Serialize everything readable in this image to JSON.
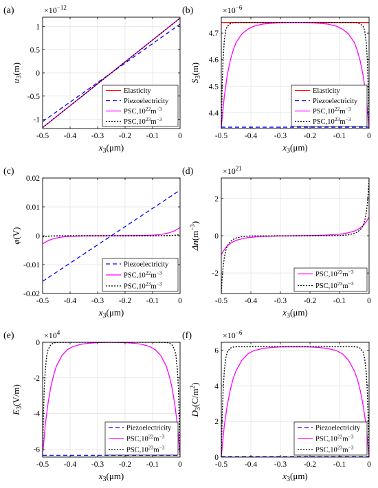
{
  "colors": {
    "elasticity": "#ff0000",
    "piezoelectricity": "#0000ff",
    "psc22": "#ff00ff",
    "psc23": "#000000",
    "grid": "#e3e3e3"
  },
  "chart_data": [
    {
      "panel": "(a)",
      "type": "line",
      "ylabel_main": "u",
      "ylabel_sub": "3",
      "ylabel_unit": "(m)",
      "xlabel_main": "x",
      "xlabel_sub": "3",
      "xlabel_unit": "(μm)",
      "exponent": "×10",
      "exponent_power": "−12",
      "xlim": [
        -0.5,
        0
      ],
      "ylim": [
        -1.2,
        1.2
      ],
      "xticks": [
        "-0.5",
        "-0.4",
        "-0.3",
        "-0.2",
        "-0.1",
        "0"
      ],
      "yticks": [
        "-1",
        "-0.5",
        "0",
        "0.5",
        "1"
      ],
      "ytick_values": [
        -1,
        -0.5,
        0,
        0.5,
        1
      ],
      "legend_position": "bottom-right",
      "series": [
        {
          "name": "Elasticity",
          "style": "solid",
          "color_key": "elasticity",
          "x": [
            -0.5,
            0
          ],
          "y": [
            -1.18,
            1.18
          ]
        },
        {
          "name": "Piezoelectricity",
          "style": "dashed",
          "color_key": "piezoelectricity",
          "x": [
            -0.5,
            0
          ],
          "y": [
            -1.05,
            1.05
          ]
        },
        {
          "name": "PSC,10",
          "power": "22",
          "unit": "m",
          "unit_power": "−3",
          "style": "solid",
          "color_key": "psc22",
          "x": [
            -0.5,
            0
          ],
          "y": [
            -1.18,
            1.18
          ]
        },
        {
          "name": "PSC,10",
          "power": "23",
          "unit": "m",
          "unit_power": "−3",
          "style": "dotted",
          "color_key": "psc23",
          "x": [
            -0.5,
            0
          ],
          "y": [
            -1.18,
            1.18
          ]
        }
      ]
    },
    {
      "panel": "(b)",
      "type": "line",
      "ylabel_main": "S",
      "ylabel_sub": "3",
      "ylabel_unit": "(m)",
      "xlabel_main": "x",
      "xlabel_sub": "3",
      "xlabel_unit": "(μm)",
      "exponent": "×10",
      "exponent_power": "−6",
      "xlim": [
        -0.5,
        0
      ],
      "ylim": [
        4.34,
        4.76
      ],
      "xticks": [
        "-0.5",
        "-0.4",
        "-0.3",
        "-0.2",
        "-0.1",
        "0"
      ],
      "yticks": [
        "4.4",
        "4.5",
        "4.6",
        "4.7"
      ],
      "ytick_values": [
        4.4,
        4.5,
        4.6,
        4.7
      ],
      "legend_position": "bottom-right",
      "series": [
        {
          "name": "Elasticity",
          "style": "solid",
          "color_key": "elasticity",
          "x": [
            -0.5,
            0
          ],
          "y": [
            4.74,
            4.74
          ]
        },
        {
          "name": "Piezoelectricity",
          "style": "dashed",
          "color_key": "piezoelectricity",
          "x": [
            -0.5,
            0
          ],
          "y": [
            4.345,
            4.345
          ]
        },
        {
          "name": "PSC,10",
          "power": "22",
          "unit": "m",
          "unit_power": "−3",
          "style": "solid",
          "color_key": "psc22",
          "x": [
            -0.5,
            -0.49,
            -0.48,
            -0.47,
            -0.46,
            -0.45,
            -0.43,
            -0.41,
            -0.39,
            -0.36,
            -0.33,
            -0.3,
            -0.25,
            -0.2,
            -0.17,
            -0.14,
            -0.11,
            -0.09,
            -0.07,
            -0.05,
            -0.04,
            -0.03,
            -0.02,
            -0.01,
            0
          ],
          "y": [
            4.345,
            4.46,
            4.54,
            4.595,
            4.635,
            4.665,
            4.697,
            4.715,
            4.726,
            4.734,
            4.737,
            4.739,
            4.74,
            4.739,
            4.737,
            4.734,
            4.726,
            4.715,
            4.697,
            4.665,
            4.635,
            4.595,
            4.54,
            4.46,
            4.345
          ]
        },
        {
          "name": "PSC,10",
          "power": "23",
          "unit": "m",
          "unit_power": "−3",
          "style": "dotted",
          "color_key": "psc23",
          "x": [
            -0.5,
            -0.497,
            -0.494,
            -0.49,
            -0.485,
            -0.48,
            -0.47,
            -0.46,
            -0.45,
            -0.4,
            -0.25,
            -0.1,
            -0.05,
            -0.04,
            -0.03,
            -0.02,
            -0.015,
            -0.01,
            -0.006,
            -0.003,
            0
          ],
          "y": [
            4.345,
            4.5,
            4.6,
            4.67,
            4.71,
            4.725,
            4.735,
            4.739,
            4.74,
            4.74,
            4.74,
            4.74,
            4.74,
            4.739,
            4.735,
            4.725,
            4.71,
            4.67,
            4.6,
            4.5,
            4.345
          ]
        }
      ]
    },
    {
      "panel": "(c)",
      "type": "line",
      "ylabel_main": "φ",
      "ylabel_sub": "",
      "ylabel_unit": "(V)",
      "xlabel_main": "x",
      "xlabel_sub": "3",
      "xlabel_unit": "(μm)",
      "exponent": "",
      "exponent_power": "",
      "xlim": [
        -0.5,
        0
      ],
      "ylim": [
        -0.02,
        0.02
      ],
      "xticks": [
        "-0.5",
        "-0.4",
        "-0.3",
        "-0.2",
        "-0.1",
        "0"
      ],
      "yticks": [
        "-0.02",
        "-0.01",
        "0",
        "0.01",
        "0.02"
      ],
      "ytick_values": [
        -0.02,
        -0.01,
        0,
        0.01,
        0.02
      ],
      "legend_position": "bottom-right",
      "series": [
        {
          "name": "Piezoelectricity",
          "style": "dashed",
          "color_key": "piezoelectricity",
          "x": [
            -0.5,
            0
          ],
          "y": [
            -0.0158,
            0.0158
          ]
        },
        {
          "name": "PSC,10",
          "power": "22",
          "unit": "m",
          "unit_power": "−3",
          "style": "solid",
          "color_key": "psc22",
          "x": [
            -0.5,
            -0.48,
            -0.46,
            -0.44,
            -0.42,
            -0.4,
            -0.37,
            -0.34,
            -0.3,
            -0.25,
            -0.2,
            -0.16,
            -0.13,
            -0.1,
            -0.08,
            -0.06,
            -0.04,
            -0.02,
            0
          ],
          "y": [
            -0.0028,
            -0.0017,
            -0.001,
            -0.0006,
            -0.00035,
            -0.0002,
            -0.0001,
            -5e-05,
            -2e-05,
            0,
            2e-05,
            5e-05,
            0.0001,
            0.0002,
            0.00035,
            0.0006,
            0.001,
            0.0017,
            0.0028
          ]
        },
        {
          "name": "PSC,10",
          "power": "23",
          "unit": "m",
          "unit_power": "−3",
          "style": "dotted",
          "color_key": "psc23",
          "x": [
            -0.5,
            -0.49,
            -0.48,
            -0.46,
            -0.44,
            -0.4,
            -0.25,
            -0.1,
            -0.06,
            -0.04,
            -0.02,
            -0.01,
            0
          ],
          "y": [
            -0.0004,
            -0.00025,
            -0.00015,
            -6e-05,
            -2e-05,
            0,
            0,
            0,
            2e-05,
            6e-05,
            0.00015,
            0.00025,
            0.0004
          ]
        }
      ]
    },
    {
      "panel": "(d)",
      "type": "line",
      "ylabel_main": "Δn",
      "ylabel_sub": "",
      "ylabel_unit": "(m",
      "ylabel_unit_power": "−3",
      "ylabel_unit_close": ")",
      "xlabel_main": "x",
      "xlabel_sub": "3",
      "xlabel_unit": "(μm)",
      "exponent": "×10",
      "exponent_power": "21",
      "xlim": [
        -0.5,
        0
      ],
      "ylim": [
        -3.1,
        3.1
      ],
      "xticks": [
        "-0.5",
        "-0.4",
        "-0.3",
        "-0.2",
        "-0.1",
        "0"
      ],
      "yticks": [
        "-2",
        "0",
        "2"
      ],
      "ytick_values": [
        -2,
        0,
        2
      ],
      "legend_position": "bottom-right",
      "series": [
        {
          "name": "PSC,10",
          "power": "22",
          "unit": "m",
          "unit_power": "−3",
          "style": "solid",
          "color_key": "psc22",
          "x": [
            -0.5,
            -0.49,
            -0.48,
            -0.47,
            -0.46,
            -0.45,
            -0.43,
            -0.41,
            -0.38,
            -0.35,
            -0.3,
            -0.25,
            -0.2,
            -0.15,
            -0.12,
            -0.09,
            -0.07,
            -0.05,
            -0.04,
            -0.03,
            -0.02,
            -0.01,
            0
          ],
          "y": [
            -1.0,
            -0.75,
            -0.55,
            -0.42,
            -0.32,
            -0.25,
            -0.16,
            -0.1,
            -0.06,
            -0.03,
            -0.01,
            0,
            0.01,
            0.03,
            0.06,
            0.1,
            0.16,
            0.25,
            0.32,
            0.42,
            0.55,
            0.75,
            1.0
          ]
        },
        {
          "name": "PSC,10",
          "power": "23",
          "unit": "m",
          "unit_power": "−3",
          "style": "dotted",
          "color_key": "psc23",
          "x": [
            -0.5,
            -0.497,
            -0.494,
            -0.49,
            -0.485,
            -0.48,
            -0.47,
            -0.46,
            -0.45,
            -0.43,
            -0.4,
            -0.25,
            -0.1,
            -0.07,
            -0.05,
            -0.04,
            -0.03,
            -0.02,
            -0.015,
            -0.01,
            -0.006,
            -0.003,
            0
          ],
          "y": [
            -3.0,
            -2.3,
            -1.7,
            -1.2,
            -0.8,
            -0.55,
            -0.32,
            -0.2,
            -0.12,
            -0.05,
            -0.01,
            0,
            0.01,
            0.05,
            0.12,
            0.2,
            0.32,
            0.55,
            0.8,
            1.2,
            1.7,
            2.3,
            3.0
          ]
        }
      ]
    },
    {
      "panel": "(e)",
      "type": "line",
      "ylabel_main": "E",
      "ylabel_sub": "3",
      "ylabel_unit": "(V/m)",
      "xlabel_main": "x",
      "xlabel_sub": "3",
      "xlabel_unit": "(μm)",
      "exponent": "×10",
      "exponent_power": "4",
      "xlim": [
        -0.5,
        0
      ],
      "ylim": [
        -6.45,
        0
      ],
      "xticks": [
        "-0.5",
        "-0.4",
        "-0.3",
        "-0.2",
        "-0.1",
        "0"
      ],
      "yticks": [
        "-6",
        "-4",
        "-2",
        "0"
      ],
      "ytick_values": [
        -6,
        -4,
        -2,
        0
      ],
      "legend_position": "bottom-right",
      "series": [
        {
          "name": "Piezoelectricity",
          "style": "dashed",
          "color_key": "piezoelectricity",
          "x": [
            -0.5,
            0
          ],
          "y": [
            -6.35,
            -6.35
          ]
        },
        {
          "name": "PSC,10",
          "power": "22",
          "unit": "m",
          "unit_power": "−3",
          "style": "solid",
          "color_key": "psc22",
          "x": [
            -0.5,
            -0.49,
            -0.48,
            -0.47,
            -0.46,
            -0.45,
            -0.43,
            -0.41,
            -0.39,
            -0.36,
            -0.33,
            -0.3,
            -0.25,
            -0.2,
            -0.17,
            -0.14,
            -0.11,
            -0.09,
            -0.07,
            -0.05,
            -0.04,
            -0.03,
            -0.02,
            -0.01,
            0
          ],
          "y": [
            -6.35,
            -4.6,
            -3.4,
            -2.5,
            -1.85,
            -1.35,
            -0.75,
            -0.42,
            -0.24,
            -0.11,
            -0.05,
            -0.02,
            0,
            -0.02,
            -0.05,
            -0.11,
            -0.24,
            -0.42,
            -0.75,
            -1.35,
            -1.85,
            -2.5,
            -3.4,
            -4.6,
            -6.35
          ]
        },
        {
          "name": "PSC,10",
          "power": "23",
          "unit": "m",
          "unit_power": "−3",
          "style": "dotted",
          "color_key": "psc23",
          "x": [
            -0.5,
            -0.497,
            -0.494,
            -0.49,
            -0.485,
            -0.48,
            -0.47,
            -0.46,
            -0.45,
            -0.4,
            -0.25,
            -0.1,
            -0.05,
            -0.04,
            -0.03,
            -0.02,
            -0.015,
            -0.01,
            -0.006,
            -0.003,
            0
          ],
          "y": [
            -6.35,
            -4.1,
            -2.6,
            -1.5,
            -0.75,
            -0.4,
            -0.13,
            -0.04,
            -0.01,
            0,
            0,
            0,
            -0.01,
            -0.04,
            -0.13,
            -0.4,
            -0.75,
            -1.5,
            -2.6,
            -4.1,
            -6.35
          ]
        }
      ]
    },
    {
      "panel": "(f)",
      "type": "line",
      "ylabel_main": "D",
      "ylabel_sub": "3",
      "ylabel_unit": "(C/m",
      "ylabel_unit_power": "2",
      "ylabel_unit_close": ")",
      "xlabel_main": "x",
      "xlabel_sub": "3",
      "xlabel_unit": "(μm)",
      "exponent": "×10",
      "exponent_power": "−6",
      "xlim": [
        -0.5,
        0
      ],
      "ylim": [
        0,
        6.45
      ],
      "xticks": [
        "-0.5",
        "-0.4",
        "-0.3",
        "-0.2",
        "-0.1",
        "0"
      ],
      "yticks": [
        "0",
        "2",
        "4",
        "6"
      ],
      "ytick_values": [
        0,
        2,
        4,
        6
      ],
      "legend_position": "bottom-right",
      "series": [
        {
          "name": "Piezoelectricity",
          "style": "dashed",
          "color_key": "piezoelectricity",
          "x": [
            -0.5,
            0
          ],
          "y": [
            0.02,
            0.02
          ]
        },
        {
          "name": "PSC,10",
          "power": "22",
          "unit": "m",
          "unit_power": "−3",
          "style": "solid",
          "color_key": "psc22",
          "x": [
            -0.5,
            -0.49,
            -0.48,
            -0.47,
            -0.46,
            -0.45,
            -0.43,
            -0.41,
            -0.39,
            -0.36,
            -0.33,
            -0.3,
            -0.25,
            -0.2,
            -0.17,
            -0.14,
            -0.11,
            -0.09,
            -0.07,
            -0.05,
            -0.04,
            -0.03,
            -0.02,
            -0.01,
            0
          ],
          "y": [
            0.02,
            1.75,
            2.9,
            3.75,
            4.4,
            4.85,
            5.45,
            5.8,
            5.98,
            6.1,
            6.16,
            6.19,
            6.2,
            6.19,
            6.16,
            6.1,
            5.98,
            5.8,
            5.45,
            4.85,
            4.4,
            3.75,
            2.9,
            1.75,
            0.02
          ]
        },
        {
          "name": "PSC,10",
          "power": "23",
          "unit": "m",
          "unit_power": "−3",
          "style": "dotted",
          "color_key": "psc23",
          "x": [
            -0.5,
            -0.497,
            -0.494,
            -0.49,
            -0.485,
            -0.48,
            -0.47,
            -0.46,
            -0.45,
            -0.4,
            -0.25,
            -0.1,
            -0.05,
            -0.04,
            -0.03,
            -0.02,
            -0.015,
            -0.01,
            -0.006,
            -0.003,
            0
          ],
          "y": [
            0.02,
            2.25,
            3.7,
            4.8,
            5.55,
            5.9,
            6.12,
            6.18,
            6.2,
            6.2,
            6.2,
            6.2,
            6.2,
            6.18,
            6.12,
            5.9,
            5.55,
            4.8,
            3.7,
            2.25,
            0.02
          ]
        }
      ]
    }
  ]
}
